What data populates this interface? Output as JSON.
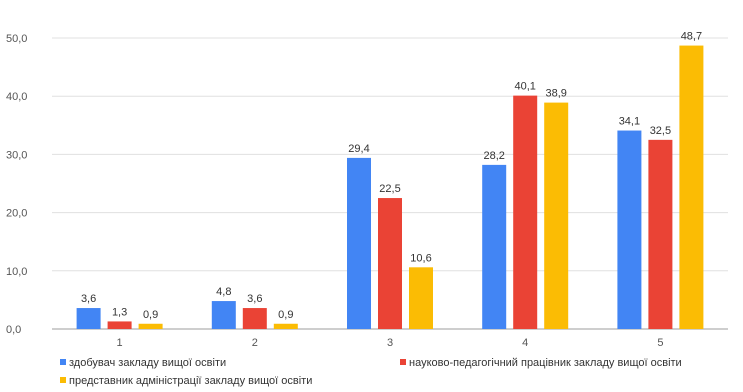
{
  "chart_data": {
    "type": "bar",
    "categories": [
      "1",
      "2",
      "3",
      "4",
      "5"
    ],
    "series": [
      {
        "name": "здобувач закладу вищої освіти",
        "color": "#4285f4",
        "values": [
          3.6,
          4.8,
          29.4,
          28.2,
          34.1
        ],
        "labels": [
          "3,6",
          "4,8",
          "29,4",
          "28,2",
          "34,1"
        ]
      },
      {
        "name": "науково-педагогічний працівник закладу вищої освіти",
        "color": "#ea4335",
        "values": [
          1.3,
          3.6,
          22.5,
          40.1,
          32.5
        ],
        "labels": [
          "1,3",
          "3,6",
          "22,5",
          "40,1",
          "32,5"
        ]
      },
      {
        "name": "представник адміністрації закладу вищої освіти",
        "color": "#fbbc04",
        "values": [
          0.9,
          0.9,
          10.6,
          38.9,
          48.7
        ],
        "labels": [
          "0,9",
          "0,9",
          "10,6",
          "38,9",
          "48,7"
        ]
      }
    ],
    "y_ticks": [
      0,
      10,
      20,
      30,
      40,
      50
    ],
    "y_tick_labels": [
      "0,0",
      "10,0",
      "20,0",
      "30,0",
      "40,0",
      "50,0"
    ],
    "ylim": [
      0,
      50
    ],
    "grid": true,
    "legend_position": "bottom"
  }
}
